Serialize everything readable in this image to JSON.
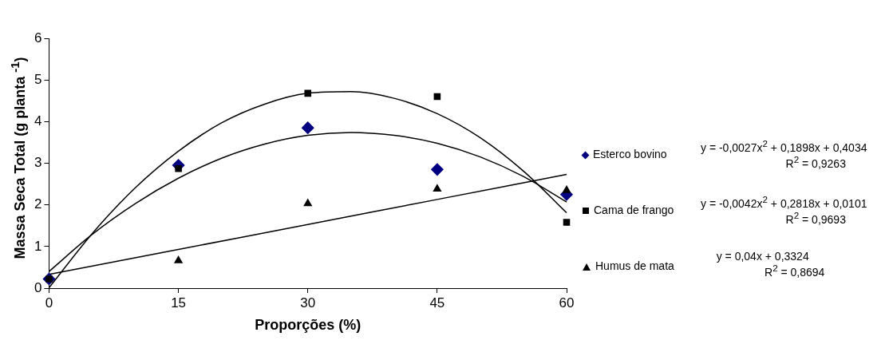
{
  "chart_data": {
    "type": "scatter",
    "xlabel": "Proporções (%)",
    "ylabel": "Massa Seca Total (g planta $^{-1}$)",
    "xlim": [
      0,
      60
    ],
    "xticks": [
      0,
      15,
      30,
      45,
      60
    ],
    "ylim": [
      0,
      6
    ],
    "yticks": [
      0,
      1,
      2,
      3,
      4,
      5,
      6
    ],
    "grid": false,
    "legend": "right",
    "series": [
      {
        "name": "Esterco bovino",
        "type": "scatter",
        "marker": "diamond",
        "color": "#000080",
        "x": [
          0,
          15,
          30,
          45,
          60
        ],
        "values": [
          0.22,
          2.95,
          3.85,
          2.85,
          2.25
        ]
      },
      {
        "name": "Cama de frango",
        "type": "scatter",
        "marker": "square",
        "color": "#000000",
        "x": [
          0,
          15,
          30,
          45,
          60
        ],
        "values": [
          0.22,
          2.87,
          4.68,
          4.6,
          1.58
        ]
      },
      {
        "name": "Humus de mata",
        "type": "scatter",
        "marker": "triangle",
        "color": "#000000",
        "x": [
          15,
          30,
          45,
          60
        ],
        "values": [
          0.66,
          2.03,
          2.38,
          2.35
        ]
      },
      {
        "type": "line",
        "marker": "none",
        "color": "#000000",
        "x": [
          0,
          5,
          10,
          15,
          20,
          25,
          30,
          35,
          40,
          45,
          50,
          55,
          60
        ],
        "values": [
          0.4,
          1.29,
          2.03,
          2.64,
          3.12,
          3.46,
          3.67,
          3.74,
          3.67,
          3.48,
          3.15,
          2.68,
          2.07
        ]
      },
      {
        "type": "line",
        "marker": "none",
        "color": "#000000",
        "x": [
          0,
          5,
          10,
          15,
          20,
          25,
          30,
          35,
          40,
          45,
          50,
          55,
          60
        ],
        "values": [
          0.01,
          1.31,
          2.41,
          3.29,
          3.97,
          4.42,
          4.68,
          4.72,
          4.56,
          4.19,
          3.61,
          2.81,
          1.81
        ]
      },
      {
        "type": "line",
        "marker": "none",
        "color": "#000000",
        "x": [
          0,
          15,
          30,
          45,
          60
        ],
        "values": [
          0.33,
          0.93,
          1.53,
          2.13,
          2.73
        ]
      }
    ],
    "annotations": [
      "y = -0,0027x$^{2}$ + 0,1898x + 0,4034",
      "R$^{2}$ = 0,9263",
      "y = -0,0042x$^{2}$ + 0,2818x + 0,0101",
      "R$^{2}$ = 0,9693",
      "y = 0,04x + 0,3324",
      "R$^{2}$ = 0,8694"
    ]
  }
}
